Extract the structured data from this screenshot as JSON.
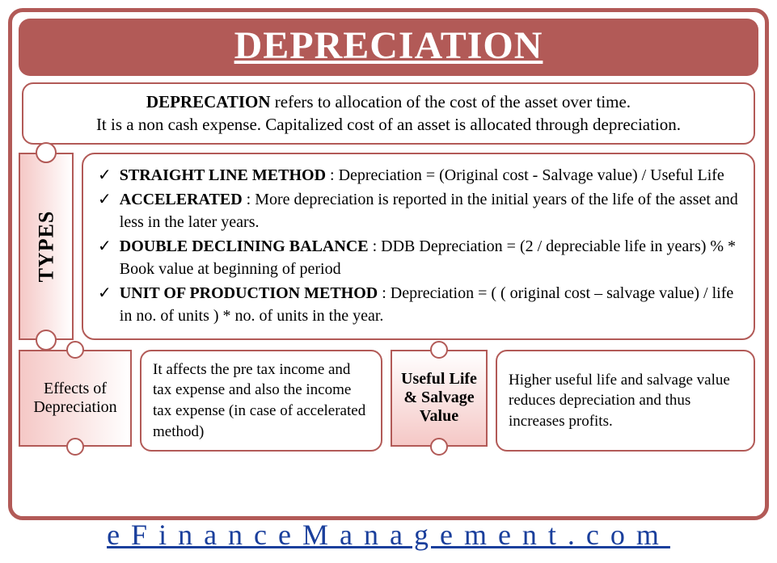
{
  "title": "DEPRECIATION",
  "definition": {
    "bold": "DEPRECATION",
    "line1_rest": " refers to allocation of the cost of the asset over time.",
    "line2": "It is a non cash expense. Capitalized cost of an asset is allocated through depreciation."
  },
  "types": {
    "label": "TYPES",
    "items": [
      {
        "bold": "STRAIGHT LINE METHOD",
        "text": " : Depreciation = (Original cost - Salvage value) / Useful Life"
      },
      {
        "bold": "ACCELERATED",
        "text": " : More depreciation is reported in the initial years of the life of the asset and less in the later years."
      },
      {
        "bold": "DOUBLE DECLINING BALANCE",
        "text": " : DDB Depreciation = (2 / depreciable life in years) % * Book value at beginning of period"
      },
      {
        "bold": "UNIT OF PRODUCTION METHOD",
        "text": " : Depreciation = ( ( original cost – salvage value) / life in no. of units ) * no. of units in the year."
      }
    ]
  },
  "effects": {
    "label": "Effects of Depreciation",
    "text": "It affects the pre tax income and tax expense and also the income tax expense (in case of accelerated method)"
  },
  "useful": {
    "label": "Useful Life & Salvage Value",
    "text": "Higher useful life and salvage value reduces depreciation and thus increases profits."
  },
  "footer": "eFinanceManagement.com",
  "colors": {
    "border": "#b25a57",
    "ticket_gradient_start": "#f5c8c6",
    "ticket_gradient_end": "#ffffff",
    "link": "#1a3f9c",
    "background": "#ffffff"
  }
}
